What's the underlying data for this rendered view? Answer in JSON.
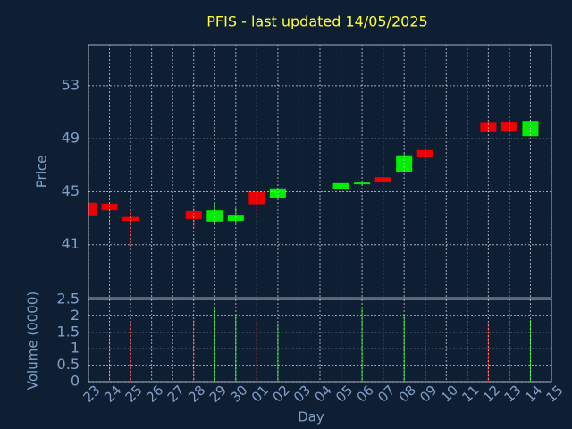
{
  "chart_data": {
    "type": "candlestick",
    "title": "PFIS - last updated 14/05/2025",
    "ylabel": "Price",
    "y2label": "Volume (0000)",
    "xlabel": "Day",
    "categories": [
      "23",
      "24",
      "25",
      "26",
      "27",
      "28",
      "29",
      "30",
      "01",
      "02",
      "03",
      "04",
      "05",
      "06",
      "07",
      "08",
      "09",
      "10",
      "11",
      "12",
      "13",
      "14",
      "15"
    ],
    "open": [
      44.17,
      44.1,
      43.1,
      null,
      null,
      43.55,
      42.75,
      42.8,
      45.0,
      44.5,
      null,
      null,
      45.2,
      45.6,
      46.1,
      46.45,
      48.15,
      null,
      null,
      50.2,
      50.3,
      49.2,
      null
    ],
    "high": [
      44.2,
      44.2,
      43.6,
      null,
      null,
      43.8,
      44.1,
      43.8,
      45.05,
      45.3,
      null,
      null,
      45.7,
      45.8,
      47.0,
      47.9,
      48.2,
      null,
      null,
      50.3,
      50.4,
      50.45,
      null
    ],
    "low": [
      43.15,
      42.6,
      40.9,
      null,
      null,
      42.3,
      42.5,
      42.6,
      43.1,
      44.5,
      null,
      null,
      45.1,
      45.5,
      45.6,
      46.45,
      47.1,
      null,
      null,
      49.45,
      49.35,
      49.2,
      null
    ],
    "close": [
      43.15,
      43.6,
      42.8,
      null,
      null,
      42.95,
      43.6,
      43.2,
      44.05,
      45.25,
      null,
      null,
      45.65,
      45.7,
      45.7,
      47.75,
      47.6,
      null,
      null,
      49.5,
      49.55,
      50.35,
      null
    ],
    "volume": [
      null,
      1.5,
      1.82,
      null,
      null,
      1.88,
      2.23,
      2.04,
      1.82,
      1.77,
      null,
      null,
      2.42,
      2.23,
      1.77,
      2.01,
      1.14,
      null,
      null,
      1.77,
      2.36,
      1.88,
      null
    ],
    "up_color": "#00ee00",
    "down_color": "#ee0000",
    "ylim": [
      37,
      56.1
    ],
    "yticks": [
      41,
      45,
      49,
      53
    ],
    "y2lim": [
      0,
      2.5
    ],
    "y2ticks": [
      0,
      0.5,
      1,
      1.5,
      2,
      2.5
    ],
    "grid": true
  }
}
